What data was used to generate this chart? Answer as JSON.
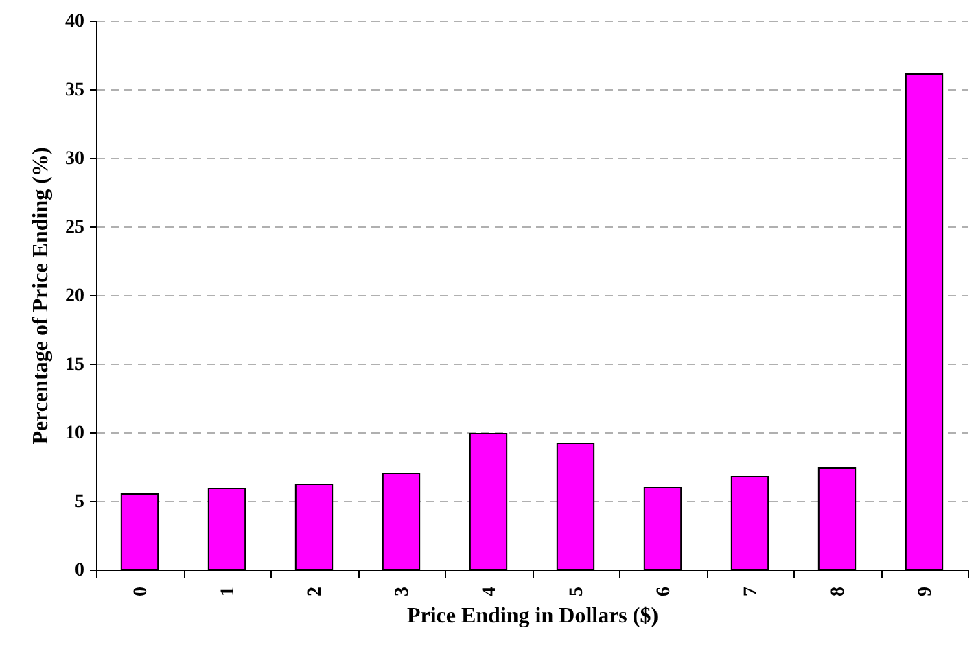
{
  "chart_data": {
    "type": "bar",
    "xlabel": "Price Ending in Dollars ($)",
    "ylabel": "Percentage of Price Ending (%)",
    "categories": [
      "0",
      "1",
      "2",
      "3",
      "4",
      "5",
      "6",
      "7",
      "8",
      "9"
    ],
    "values": [
      5.5,
      5.9,
      6.2,
      7.0,
      9.9,
      9.2,
      6.0,
      6.8,
      7.4,
      36.1
    ],
    "color": "#ff00ff",
    "ylim": [
      0,
      40
    ],
    "yticks": [
      0,
      5,
      10,
      15,
      20,
      25,
      30,
      35,
      40
    ],
    "grid": "y"
  }
}
